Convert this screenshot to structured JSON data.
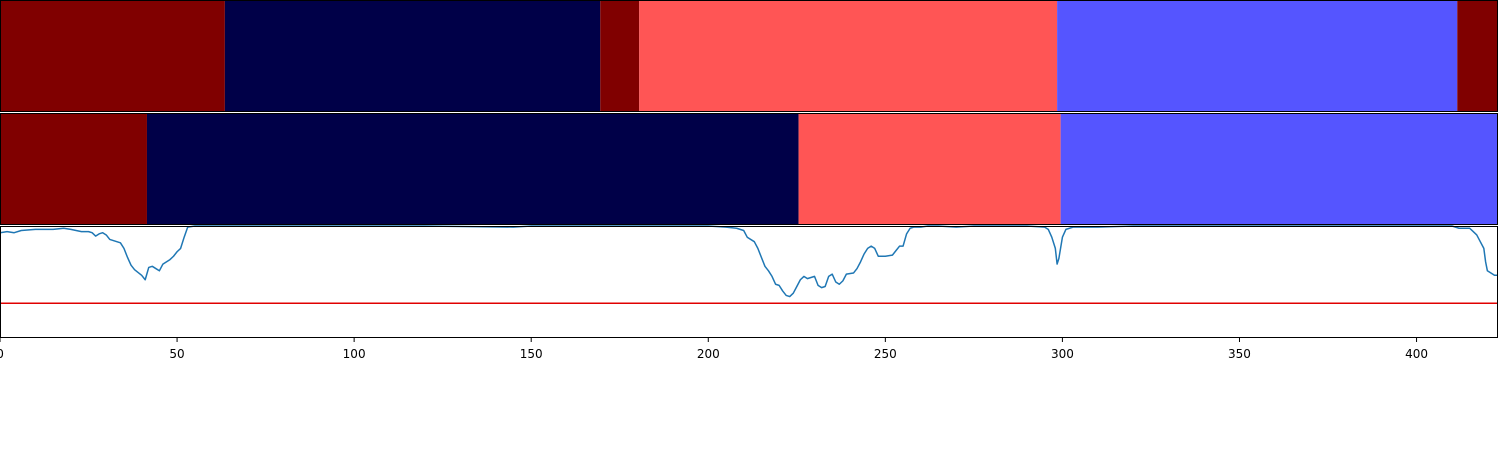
{
  "chart_data": {
    "type": "area",
    "xlim": [
      0,
      423
    ],
    "x_ticks": [
      "0",
      "50",
      "100",
      "150",
      "200",
      "250",
      "300",
      "350",
      "400"
    ],
    "colors": {
      "dark_red": "#800000",
      "navy": "#000048",
      "light_red": "#ff5555",
      "light_blue": "#5555ff",
      "line": "#1f77b4",
      "threshold": "#e00000"
    },
    "segment_rows": [
      {
        "segments": [
          {
            "start": 0,
            "end": 63.5,
            "color": "dark_red"
          },
          {
            "start": 63.5,
            "end": 169.5,
            "color": "navy"
          },
          {
            "start": 169.5,
            "end": 180.5,
            "color": "dark_red"
          },
          {
            "start": 180.5,
            "end": 298.5,
            "color": "light_red"
          },
          {
            "start": 298.5,
            "end": 411.5,
            "color": "light_blue"
          },
          {
            "start": 411.5,
            "end": 423,
            "color": "dark_red"
          }
        ]
      },
      {
        "segments": [
          {
            "start": 0,
            "end": 41.5,
            "color": "dark_red"
          },
          {
            "start": 41.5,
            "end": 225.5,
            "color": "navy"
          },
          {
            "start": 225.5,
            "end": 299.5,
            "color": "light_red"
          },
          {
            "start": 299.5,
            "end": 423,
            "color": "light_blue"
          }
        ]
      }
    ],
    "line_series": {
      "ylim": [
        0,
        1
      ],
      "threshold": 0.31,
      "points": [
        [
          0,
          0.94
        ],
        [
          2,
          0.95
        ],
        [
          4,
          0.94
        ],
        [
          6,
          0.96
        ],
        [
          10,
          0.97
        ],
        [
          15,
          0.97
        ],
        [
          18,
          0.98
        ],
        [
          20,
          0.97
        ],
        [
          23,
          0.95
        ],
        [
          25,
          0.95
        ],
        [
          26,
          0.94
        ],
        [
          27,
          0.91
        ],
        [
          28,
          0.93
        ],
        [
          29,
          0.94
        ],
        [
          30,
          0.92
        ],
        [
          31,
          0.88
        ],
        [
          33,
          0.86
        ],
        [
          34,
          0.85
        ],
        [
          35,
          0.8
        ],
        [
          36,
          0.72
        ],
        [
          37,
          0.65
        ],
        [
          38,
          0.61
        ],
        [
          40,
          0.56
        ],
        [
          41,
          0.52
        ],
        [
          42,
          0.63
        ],
        [
          43,
          0.64
        ],
        [
          44,
          0.62
        ],
        [
          45,
          0.6
        ],
        [
          46,
          0.66
        ],
        [
          47,
          0.68
        ],
        [
          48,
          0.7
        ],
        [
          49,
          0.73
        ],
        [
          50,
          0.77
        ],
        [
          51,
          0.8
        ],
        [
          52,
          0.9
        ],
        [
          53,
          0.99
        ],
        [
          55,
          1.0
        ],
        [
          60,
          1.0
        ],
        [
          80,
          1.0
        ],
        [
          120,
          1.0
        ],
        [
          145,
          0.99
        ],
        [
          150,
          1.0
        ],
        [
          170,
          1.0
        ],
        [
          200,
          1.0
        ],
        [
          205,
          0.99
        ],
        [
          208,
          0.98
        ],
        [
          210,
          0.96
        ],
        [
          211,
          0.9
        ],
        [
          213,
          0.86
        ],
        [
          214,
          0.8
        ],
        [
          215,
          0.72
        ],
        [
          216,
          0.64
        ],
        [
          217,
          0.6
        ],
        [
          218,
          0.55
        ],
        [
          219,
          0.48
        ],
        [
          220,
          0.47
        ],
        [
          221,
          0.42
        ],
        [
          222,
          0.38
        ],
        [
          223,
          0.37
        ],
        [
          224,
          0.4
        ],
        [
          225,
          0.46
        ],
        [
          226,
          0.52
        ],
        [
          227,
          0.55
        ],
        [
          228,
          0.53
        ],
        [
          229,
          0.54
        ],
        [
          230,
          0.55
        ],
        [
          231,
          0.47
        ],
        [
          232,
          0.45
        ],
        [
          233,
          0.46
        ],
        [
          234,
          0.55
        ],
        [
          235,
          0.57
        ],
        [
          236,
          0.5
        ],
        [
          237,
          0.48
        ],
        [
          238,
          0.51
        ],
        [
          239,
          0.57
        ],
        [
          241,
          0.58
        ],
        [
          242,
          0.62
        ],
        [
          243,
          0.68
        ],
        [
          244,
          0.75
        ],
        [
          245,
          0.8
        ],
        [
          246,
          0.82
        ],
        [
          247,
          0.8
        ],
        [
          248,
          0.73
        ],
        [
          250,
          0.73
        ],
        [
          252,
          0.74
        ],
        [
          253,
          0.78
        ],
        [
          254,
          0.82
        ],
        [
          255,
          0.82
        ],
        [
          256,
          0.93
        ],
        [
          257,
          0.98
        ],
        [
          258,
          0.99
        ],
        [
          260,
          0.99
        ],
        [
          262,
          1.0
        ],
        [
          265,
          1.0
        ],
        [
          270,
          0.99
        ],
        [
          275,
          1.0
        ],
        [
          280,
          1.0
        ],
        [
          290,
          1.0
        ],
        [
          295,
          0.99
        ],
        [
          296,
          0.97
        ],
        [
          297,
          0.9
        ],
        [
          298,
          0.8
        ],
        [
          298.5,
          0.66
        ],
        [
          299,
          0.71
        ],
        [
          300,
          0.9
        ],
        [
          301,
          0.97
        ],
        [
          303,
          0.99
        ],
        [
          310,
          0.99
        ],
        [
          320,
          1.0
        ],
        [
          340,
          1.0
        ],
        [
          360,
          1.0
        ],
        [
          380,
          1.0
        ],
        [
          400,
          1.0
        ],
        [
          410,
          1.0
        ],
        [
          412,
          0.98
        ],
        [
          415,
          0.98
        ],
        [
          416,
          0.95
        ],
        [
          417,
          0.92
        ],
        [
          418,
          0.86
        ],
        [
          419,
          0.8
        ],
        [
          419.5,
          0.68
        ],
        [
          420,
          0.6
        ],
        [
          421,
          0.58
        ],
        [
          422,
          0.56
        ],
        [
          423,
          0.56
        ]
      ]
    }
  }
}
